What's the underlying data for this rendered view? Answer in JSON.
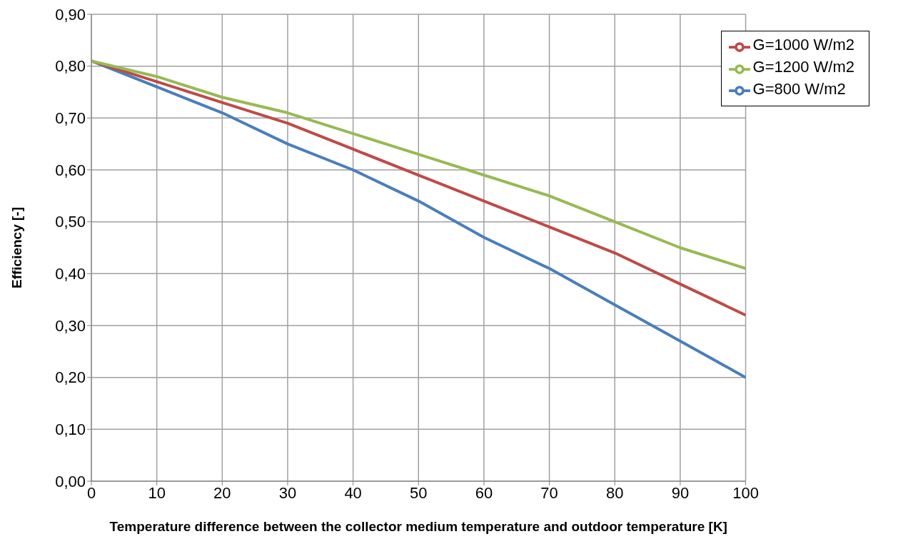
{
  "chart_data": {
    "type": "line",
    "xlabel": "Temperature difference between the collector medium temperature and outdoor temperature [K]",
    "ylabel": "Efficiency [-]",
    "x": [
      0,
      10,
      20,
      30,
      40,
      50,
      60,
      70,
      80,
      90,
      100
    ],
    "series": [
      {
        "name": "G=800 W/m2",
        "color": "#4a7ebb",
        "values": [
          0.81,
          0.76,
          0.71,
          0.65,
          0.6,
          0.54,
          0.47,
          0.41,
          0.34,
          0.27,
          0.2
        ]
      },
      {
        "name": "G=1000 W/m2",
        "color": "#be4b48",
        "values": [
          0.81,
          0.77,
          0.73,
          0.69,
          0.64,
          0.59,
          0.54,
          0.49,
          0.44,
          0.38,
          0.32
        ]
      },
      {
        "name": "G=1200 W/m2",
        "color": "#98b954",
        "values": [
          0.81,
          0.78,
          0.74,
          0.71,
          0.67,
          0.63,
          0.59,
          0.55,
          0.5,
          0.45,
          0.41
        ]
      }
    ],
    "xlim": [
      0,
      100
    ],
    "xticks": [
      0,
      10,
      20,
      30,
      40,
      50,
      60,
      70,
      80,
      90,
      100
    ],
    "ylim": [
      0,
      0.9
    ],
    "yticks": [
      {
        "value": 0,
        "label": "0,00"
      },
      {
        "value": 0.1,
        "label": "0,10"
      },
      {
        "value": 0.2,
        "label": "0,20"
      },
      {
        "value": 0.3,
        "label": "0,30"
      },
      {
        "value": 0.4,
        "label": "0,40"
      },
      {
        "value": 0.5,
        "label": "0,50"
      },
      {
        "value": 0.6,
        "label": "0,60"
      },
      {
        "value": 0.7,
        "label": "0,70"
      },
      {
        "value": 0.8,
        "label": "0,80"
      },
      {
        "value": 0.9,
        "label": "0,90"
      }
    ],
    "grid": true,
    "legend": "top right",
    "marker": "none",
    "line_style": "solid"
  }
}
